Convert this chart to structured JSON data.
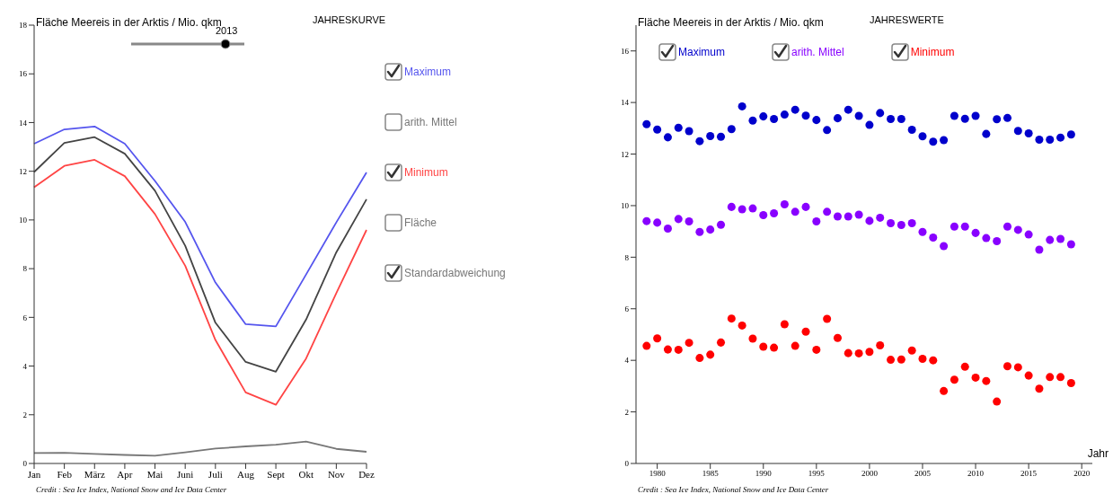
{
  "chart_data": [
    {
      "type": "line",
      "title": "JAHRESKURVE",
      "ylabel": "Fläche Meereis in der Arktis / Mio. qkm",
      "categories": [
        "Jan",
        "Feb",
        "März",
        "Apr",
        "Mai",
        "Juni",
        "Juli",
        "Aug",
        "Sept",
        "Okt",
        "Nov",
        "Dez"
      ],
      "series": [
        {
          "name": "Maximum",
          "color": "#5555ee",
          "values": [
            13.13,
            13.72,
            13.84,
            13.13,
            11.6,
            9.92,
            7.43,
            5.72,
            5.63,
            7.76,
            9.9,
            11.95
          ]
        },
        {
          "color": "#444444",
          "values": [
            11.97,
            13.16,
            13.4,
            12.72,
            11.2,
            8.94,
            5.78,
            4.17,
            3.77,
            5.91,
            8.67,
            10.85
          ]
        },
        {
          "name": "Minimum",
          "color": "#ff4444",
          "values": [
            11.34,
            12.22,
            12.47,
            11.8,
            10.24,
            8.12,
            5.07,
            2.92,
            2.41,
            4.31,
            6.99,
            9.59
          ]
        },
        {
          "name": "Standardabweichung",
          "color": "#777777",
          "values": [
            0.43,
            0.44,
            0.39,
            0.35,
            0.32,
            0.46,
            0.61,
            0.7,
            0.77,
            0.9,
            0.6,
            0.48
          ]
        }
      ],
      "ylim": [
        0,
        18
      ],
      "yticks": [
        0,
        2,
        4,
        6,
        8,
        10,
        12,
        14,
        16,
        18
      ],
      "legend": "right",
      "marker": "none",
      "line_style": "solid",
      "annotations": [
        "2013",
        "arith. Mittel",
        "Fläche",
        "Credit : Sea Ice Index, National Snow and Ice Data Center"
      ]
    },
    {
      "type": "scatter",
      "title": "JAHRESWERTE",
      "ylabel": "Fläche Meereis in der Arktis / Mio. qkm",
      "xlabel": "Jahr",
      "x": [
        1979,
        1980,
        1981,
        1982,
        1983,
        1984,
        1985,
        1986,
        1987,
        1988,
        1989,
        1990,
        1991,
        1992,
        1993,
        1994,
        1995,
        1996,
        1997,
        1998,
        1999,
        2000,
        2001,
        2002,
        2003,
        2004,
        2005,
        2006,
        2007,
        2008,
        2009,
        2010,
        2011,
        2012,
        2013,
        2014,
        2015,
        2016,
        2017,
        2018,
        2019
      ],
      "series": [
        {
          "name": "Maximum",
          "color": "#0000cc",
          "values": [
            13.16,
            12.95,
            12.65,
            13.02,
            12.89,
            12.5,
            12.7,
            12.67,
            12.97,
            13.85,
            13.3,
            13.46,
            13.36,
            13.53,
            13.72,
            13.49,
            13.32,
            12.93,
            13.39,
            13.72,
            13.48,
            13.13,
            13.59,
            13.36,
            13.36,
            12.94,
            12.69,
            12.48,
            12.54,
            13.48,
            13.37,
            13.48,
            12.78,
            13.35,
            13.4,
            12.9,
            12.8,
            12.56,
            12.56,
            12.64,
            12.76
          ]
        },
        {
          "name": "arith. Mittel",
          "color": "#8800ff",
          "values": [
            9.4,
            9.34,
            9.11,
            9.48,
            9.39,
            8.98,
            9.07,
            9.26,
            9.95,
            9.86,
            9.89,
            9.63,
            9.7,
            10.05,
            9.76,
            9.95,
            9.39,
            9.76,
            9.58,
            9.58,
            9.65,
            9.41,
            9.53,
            9.32,
            9.25,
            9.32,
            8.98,
            8.76,
            8.43,
            9.19,
            9.19,
            8.94,
            8.74,
            8.62,
            9.19,
            9.06,
            8.88,
            8.29,
            8.67,
            8.71,
            8.5
          ]
        },
        {
          "name": "Minimum",
          "color": "#ff0000",
          "values": [
            4.56,
            4.85,
            4.42,
            4.41,
            4.68,
            4.09,
            4.22,
            4.69,
            5.62,
            5.35,
            4.84,
            4.53,
            4.49,
            5.4,
            4.56,
            5.11,
            4.41,
            5.61,
            4.87,
            4.28,
            4.27,
            4.33,
            4.58,
            4.02,
            4.03,
            4.38,
            4.06,
            4.0,
            2.81,
            3.25,
            3.75,
            3.33,
            3.2,
            2.4,
            3.77,
            3.73,
            3.41,
            2.9,
            3.35,
            3.35,
            3.12
          ]
        }
      ],
      "xlim": [
        1978,
        2021
      ],
      "xticks": [
        1980,
        1985,
        1990,
        1995,
        2000,
        2005,
        2010,
        2015,
        2020
      ],
      "ylim": [
        0,
        17
      ],
      "yticks": [
        0,
        2,
        4,
        6,
        8,
        10,
        12,
        14,
        16
      ],
      "legend": "top left",
      "marker": "circle",
      "annotations": [
        "Credit : Sea Ice Index, National Snow and Ice Data Center"
      ]
    }
  ]
}
